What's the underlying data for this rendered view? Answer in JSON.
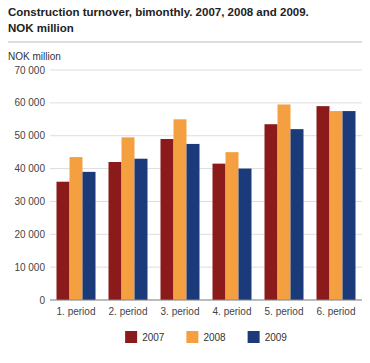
{
  "chart_data": {
    "type": "bar",
    "title": "Construction turnover, bimonthly. 2007, 2008 and 2009.",
    "subtitle": "NOK million",
    "ylabel": "NOK million",
    "categories": [
      "1. period",
      "2. period",
      "3. period",
      "4. period",
      "5. period",
      "6. period"
    ],
    "series": [
      {
        "name": "2007",
        "color": "#8B1A1A",
        "values": [
          36000,
          42000,
          49000,
          41500,
          53500,
          59000
        ]
      },
      {
        "name": "2008",
        "color": "#F5A040",
        "values": [
          43500,
          49500,
          55000,
          45000,
          59500,
          57500
        ]
      },
      {
        "name": "2009",
        "color": "#1A3A7A",
        "values": [
          39000,
          43000,
          47500,
          40000,
          52000,
          57500
        ]
      }
    ],
    "ylim": [
      0,
      70000
    ],
    "yticks": [
      0,
      {
        "value": 10000,
        "label": "10 000"
      },
      {
        "value": 20000,
        "label": "20 000"
      },
      {
        "value": 30000,
        "label": "30 000"
      },
      {
        "value": 40000,
        "label": "40 000"
      },
      {
        "value": 50000,
        "label": "50 000"
      },
      {
        "value": 60000,
        "label": "60 000"
      },
      {
        "value": 70000,
        "label": "70 000"
      }
    ],
    "grid": true,
    "legend": "bottom"
  }
}
